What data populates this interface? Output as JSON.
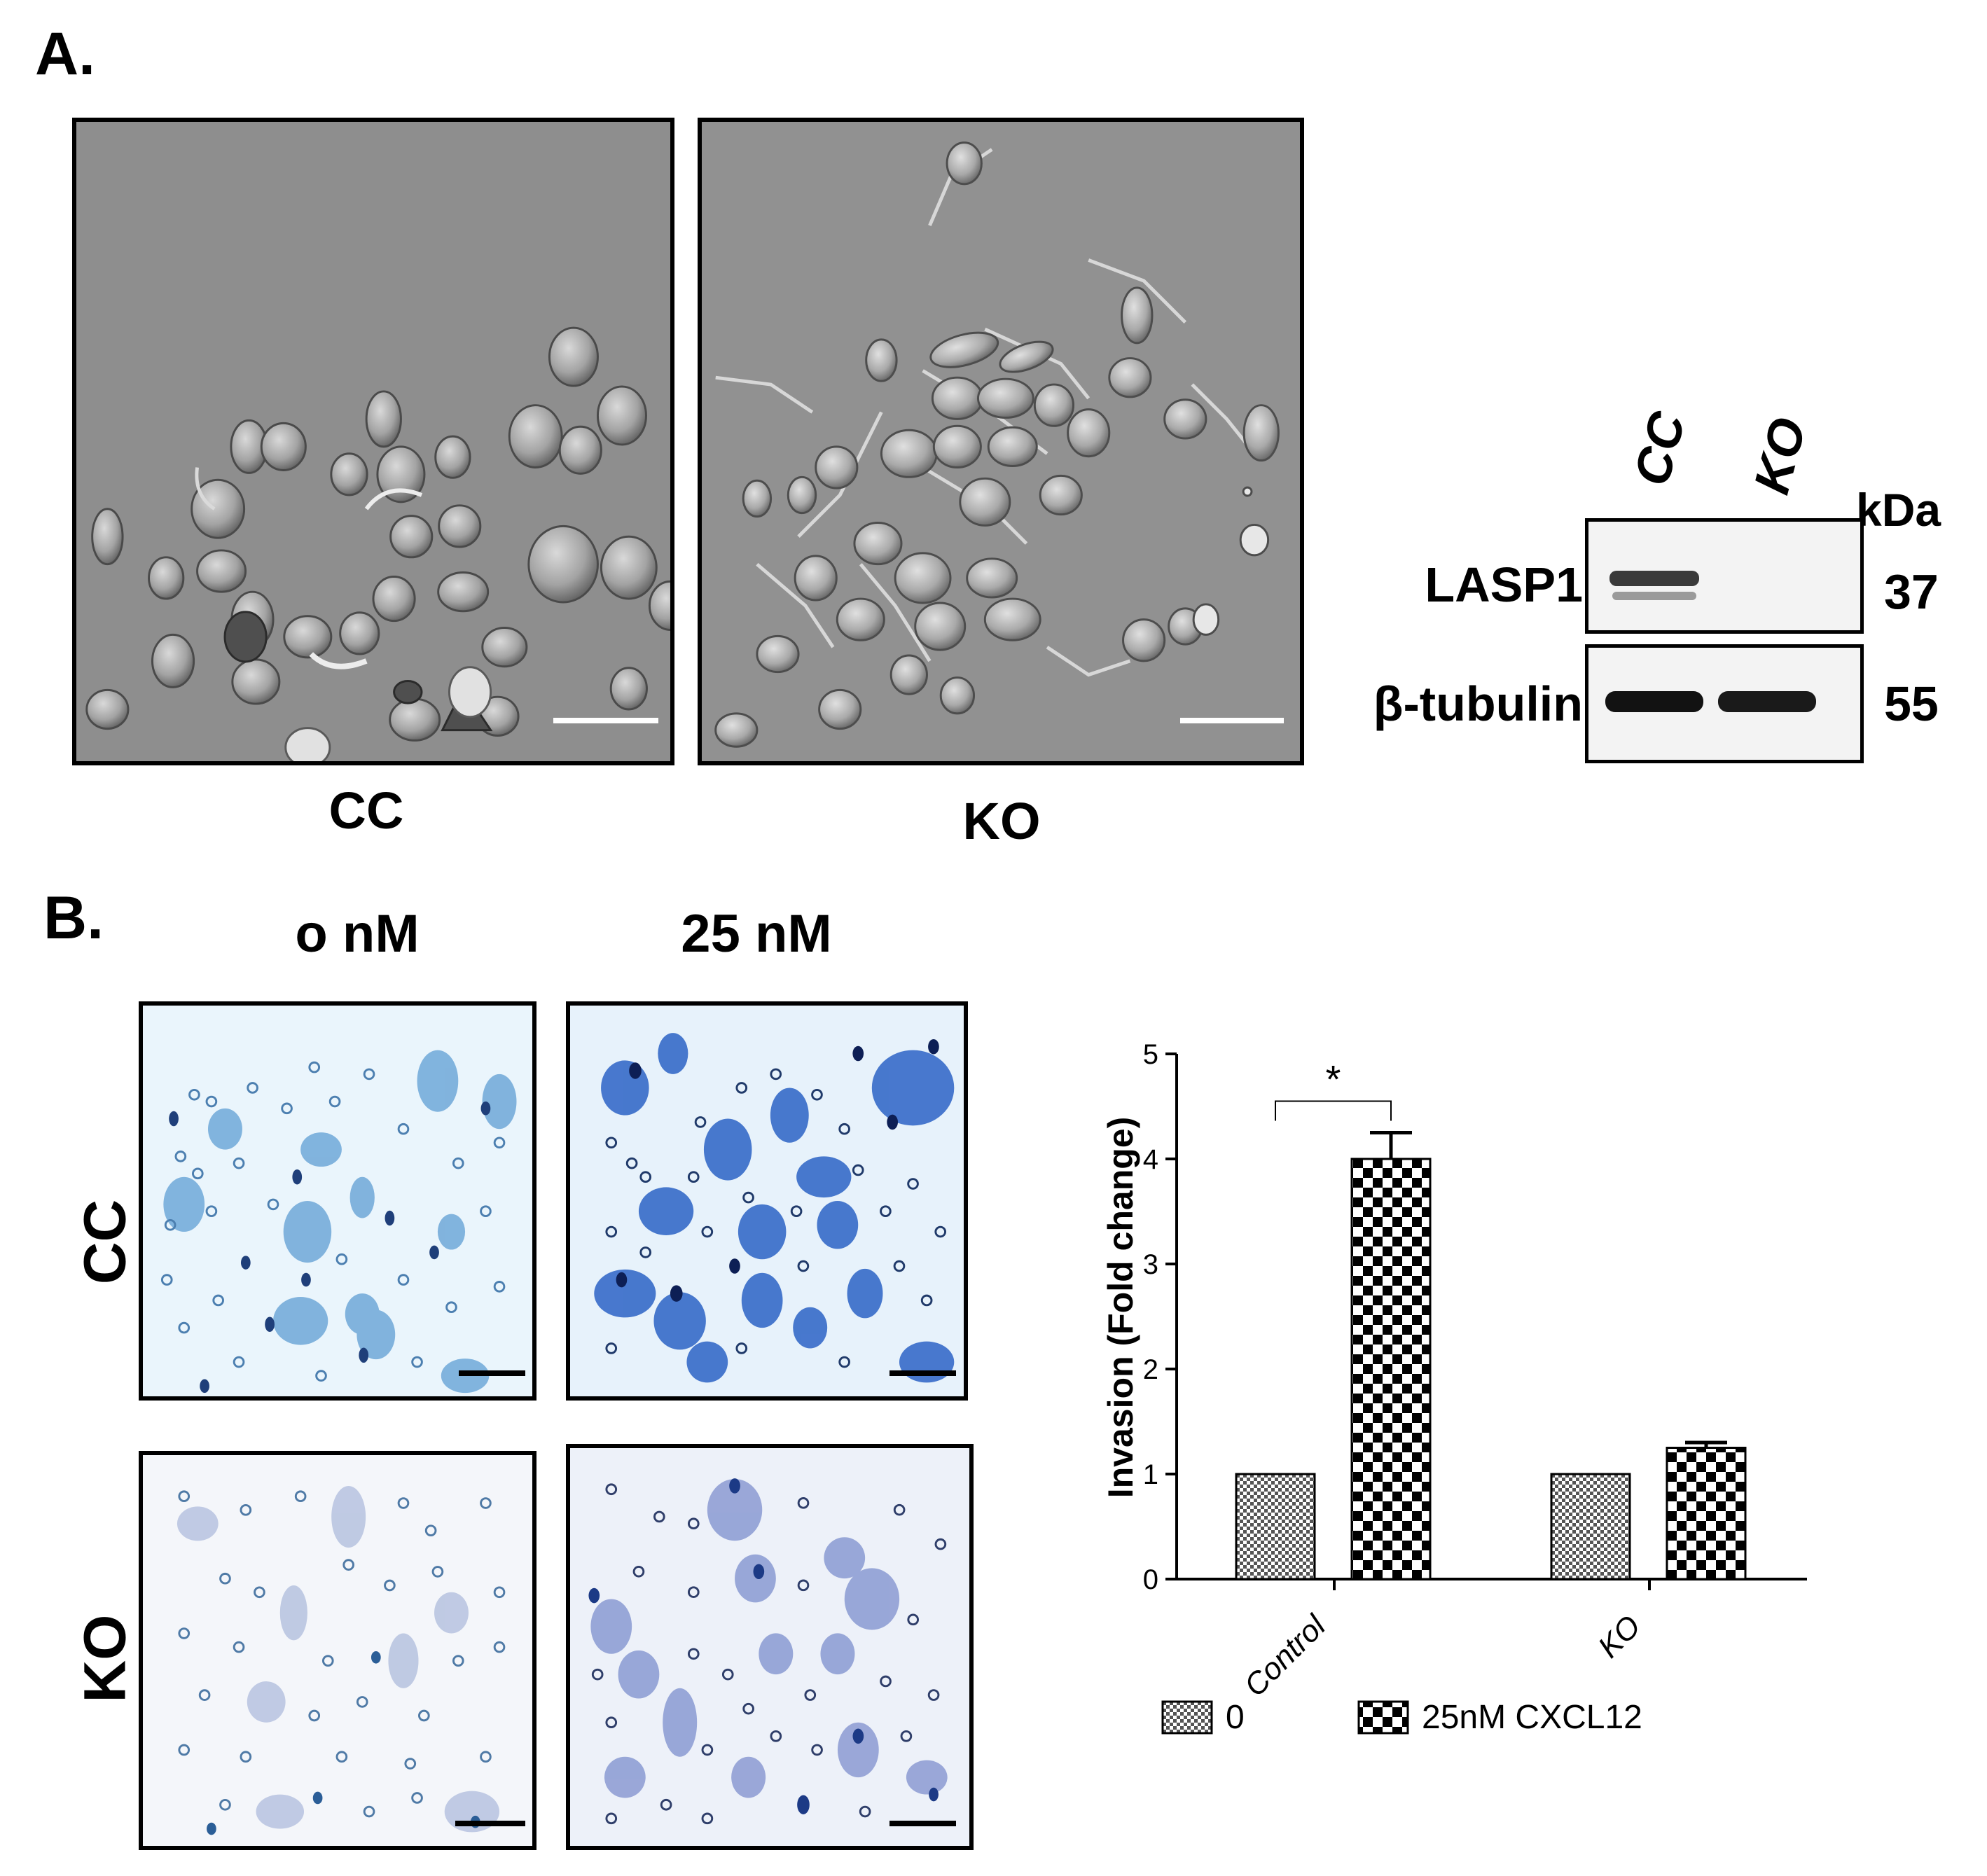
{
  "panel_a": {
    "letter": "A.",
    "image_labels": [
      "CC",
      "KO"
    ],
    "blot": {
      "lane_labels": [
        "CC",
        "KO"
      ],
      "unit": "kDa",
      "rows": [
        {
          "protein": "LASP1",
          "mw": "37"
        },
        {
          "protein": "β-tubulin",
          "mw": "55"
        }
      ]
    }
  },
  "panel_b": {
    "letter": "B.",
    "column_labels": [
      "o nM",
      "25 nM"
    ],
    "row_labels": [
      "CC",
      "KO"
    ]
  },
  "chart_data": {
    "type": "bar",
    "categories": [
      "Control",
      "KO"
    ],
    "series": [
      {
        "name": "0",
        "values": [
          1.0,
          1.0
        ],
        "errors": [
          0,
          0
        ],
        "pattern": "fine-check"
      },
      {
        "name": "25nM CXCL12",
        "values": [
          4.0,
          1.25
        ],
        "errors": [
          0.25,
          0.05
        ],
        "pattern": "coarse-check"
      }
    ],
    "ylabel": "Invasion (Fold change)",
    "xlabel": "",
    "ylim": [
      0,
      5
    ],
    "yticks": [
      "0",
      "1",
      "2",
      "3",
      "4",
      "5"
    ],
    "significance": [
      {
        "category": "Control",
        "label": "*"
      }
    ],
    "legend_position": "bottom",
    "grid": false
  }
}
